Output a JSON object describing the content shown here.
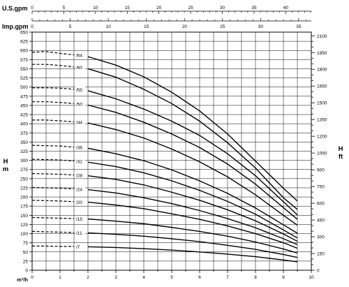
{
  "chart_data": {
    "type": "line",
    "title": "",
    "axes": {
      "x_bottom": {
        "label": "m³/h",
        "min": 0,
        "max": 10,
        "ticks": [
          0,
          1,
          2,
          3,
          4,
          5,
          6,
          7,
          8,
          9,
          10
        ]
      },
      "x_top_usgpm": {
        "label": "U.S.gpm",
        "ticks": [
          0,
          5,
          10,
          15,
          20,
          25,
          30,
          35,
          40
        ],
        "m3h_per_unit": 0.22712
      },
      "x_top_impgpm": {
        "label": "Imp.gpm",
        "ticks": [
          0,
          5,
          10,
          15,
          20,
          25,
          30,
          35
        ],
        "m3h_per_unit": 0.27277
      },
      "y_left": {
        "label_lines": [
          "H",
          "m"
        ],
        "min": 0,
        "max": 650,
        "ticks": [
          0,
          25,
          50,
          75,
          100,
          125,
          150,
          175,
          200,
          225,
          250,
          275,
          300,
          325,
          350,
          375,
          400,
          425,
          450,
          475,
          500,
          525,
          550,
          575,
          600,
          625,
          650
        ]
      },
      "y_right": {
        "label_lines": [
          "H",
          "ft"
        ],
        "min": 0,
        "max": 2133,
        "ticks": [
          0,
          150,
          300,
          450,
          600,
          750,
          900,
          1050,
          1200,
          1350,
          1500,
          1650,
          1800,
          1950,
          2100
        ]
      }
    },
    "grid": true,
    "series": [
      {
        "name": "/64",
        "x": [
          0,
          0.5,
          1,
          1.5,
          2,
          3,
          4,
          5,
          6,
          7,
          8,
          9,
          9.5
        ],
        "y": [
          595,
          597,
          592,
          588,
          583,
          560,
          528,
          486,
          435,
          372,
          298,
          224,
          189
        ]
      },
      {
        "name": "/60",
        "x": [
          0,
          0.5,
          1,
          1.5,
          2,
          3,
          4,
          5,
          6,
          7,
          8,
          9,
          9.5
        ],
        "y": [
          562,
          562,
          559,
          555,
          550,
          527,
          494,
          455,
          407,
          348,
          279,
          198,
          166
        ]
      },
      {
        "name": "/55",
        "x": [
          0,
          0.5,
          1,
          1.5,
          2,
          3,
          4,
          5,
          6,
          7,
          8,
          9,
          9.5
        ],
        "y": [
          498,
          498,
          497,
          494,
          490,
          468,
          440,
          407,
          368,
          318,
          258,
          187,
          151
        ]
      },
      {
        "name": "/50",
        "x": [
          0,
          0.5,
          1,
          1.5,
          2,
          3,
          4,
          5,
          6,
          7,
          8,
          9,
          9.5
        ],
        "y": [
          460,
          460,
          458,
          455,
          451,
          431,
          404,
          372,
          335,
          290,
          235,
          171,
          139
        ]
      },
      {
        "name": "/44",
        "x": [
          0,
          0.5,
          1,
          1.5,
          2,
          3,
          4,
          5,
          6,
          7,
          8,
          9,
          9.5
        ],
        "y": [
          410,
          410,
          408,
          405,
          402,
          384,
          361,
          331,
          296,
          255,
          206,
          150,
          123
        ]
      },
      {
        "name": "/36",
        "x": [
          0,
          0.5,
          1,
          1.5,
          2,
          3,
          4,
          5,
          6,
          7,
          8,
          9,
          9.5
        ],
        "y": [
          341,
          340,
          339,
          336,
          333,
          318,
          299,
          274,
          244,
          210,
          170,
          124,
          101
        ]
      },
      {
        "name": "/32",
        "x": [
          0,
          0.5,
          1,
          1.5,
          2,
          3,
          4,
          5,
          6,
          7,
          8,
          9,
          9.5
        ],
        "y": [
          303,
          302,
          301,
          298,
          295,
          283,
          266,
          244,
          218,
          188,
          153,
          110,
          88
        ]
      },
      {
        "name": "/28",
        "x": [
          0,
          0.5,
          1,
          1.5,
          2,
          3,
          4,
          5,
          6,
          7,
          8,
          9,
          9.5
        ],
        "y": [
          264,
          263,
          262,
          260,
          258,
          248,
          233,
          213,
          191,
          165,
          135,
          99,
          79
        ]
      },
      {
        "name": "/24",
        "x": [
          0,
          0.5,
          1,
          1.5,
          2,
          3,
          4,
          5,
          6,
          7,
          8,
          9,
          9.5
        ],
        "y": [
          226,
          225,
          224,
          222,
          220,
          211,
          198,
          182,
          163,
          141,
          116,
          86,
          70
        ]
      },
      {
        "name": "/20",
        "x": [
          0,
          0.5,
          1,
          1.5,
          2,
          3,
          4,
          5,
          6,
          7,
          8,
          9,
          9.5
        ],
        "y": [
          191,
          190,
          189,
          187,
          186,
          178,
          168,
          154,
          139,
          121,
          100,
          75,
          60
        ]
      },
      {
        "name": "/15",
        "x": [
          0,
          0.5,
          1,
          1.5,
          2,
          3,
          4,
          5,
          6,
          7,
          8,
          9,
          9.5
        ],
        "y": [
          144,
          143,
          142,
          141,
          140,
          134,
          127,
          117,
          106,
          93,
          77,
          58,
          47
        ]
      },
      {
        "name": "/11",
        "x": [
          0,
          0.5,
          1,
          1.5,
          2,
          3,
          4,
          5,
          6,
          7,
          8,
          9,
          9.5
        ],
        "y": [
          106,
          105,
          104,
          103,
          102,
          98,
          93,
          86,
          78,
          68,
          57,
          43,
          35
        ]
      },
      {
        "name": "/7",
        "x": [
          0,
          0.5,
          1,
          1.5,
          2,
          3,
          4,
          5,
          6,
          7,
          8,
          9,
          9.5
        ],
        "y": [
          66,
          66,
          65,
          65,
          64,
          62,
          59,
          55,
          50,
          44,
          37,
          28,
          23
        ]
      }
    ]
  }
}
